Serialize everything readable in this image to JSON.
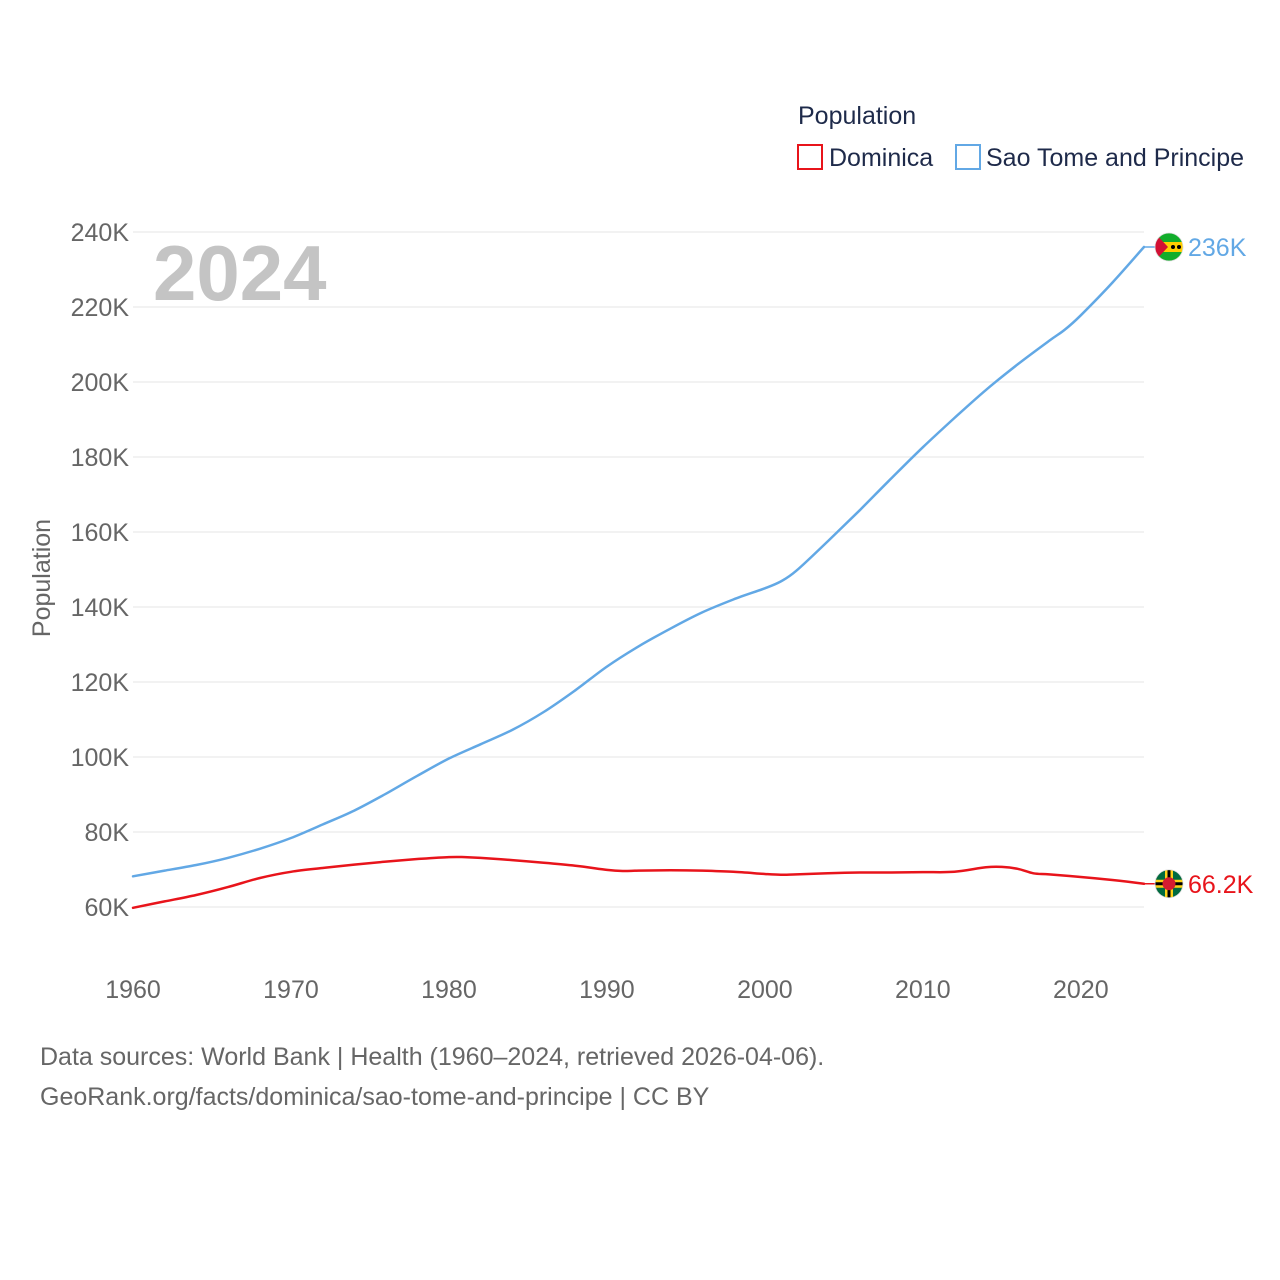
{
  "chart_data": {
    "type": "line",
    "title": "Population",
    "year_label": "2024",
    "ylabel": "Population",
    "xlabel": "",
    "xlim": [
      1960,
      2024
    ],
    "ylim": [
      60000,
      240000
    ],
    "x_ticks": [
      1960,
      1970,
      1980,
      1990,
      2000,
      2010,
      2020
    ],
    "x_tick_labels": [
      "1960",
      "1970",
      "1980",
      "1990",
      "2000",
      "2010",
      "2020"
    ],
    "y_ticks": [
      60000,
      80000,
      100000,
      120000,
      140000,
      160000,
      180000,
      200000,
      220000,
      240000
    ],
    "y_tick_labels": [
      "60K",
      "80K",
      "100K",
      "120K",
      "140K",
      "160K",
      "180K",
      "200K",
      "220K",
      "240K"
    ],
    "grid": true,
    "legend": "top-right",
    "series": [
      {
        "name": "Dominica",
        "color": "#e8141b",
        "end_label": "66.2K",
        "flag": "dominica-flag",
        "x": [
          1960,
          1962,
          1964,
          1966,
          1968,
          1970,
          1972,
          1974,
          1976,
          1978,
          1980,
          1981,
          1982,
          1984,
          1986,
          1988,
          1990,
          1991,
          1992,
          1994,
          1996,
          1998,
          2000,
          2001,
          2002,
          2004,
          2006,
          2008,
          2010,
          2012,
          2014,
          2015,
          2016,
          2017,
          2018,
          2020,
          2022,
          2024
        ],
        "values": [
          59800,
          61500,
          63200,
          65300,
          67700,
          69400,
          70400,
          71300,
          72100,
          72800,
          73300,
          73300,
          73100,
          72500,
          71800,
          71000,
          69900,
          69600,
          69700,
          69800,
          69700,
          69400,
          68800,
          68600,
          68700,
          69000,
          69200,
          69200,
          69300,
          69400,
          70600,
          70700,
          70200,
          69000,
          68700,
          68000,
          67200,
          66200
        ]
      },
      {
        "name": "Sao Tome and Principe",
        "color": "#62a8e5",
        "end_label": "236K",
        "flag": "sao-tome-and-principe-flag",
        "x": [
          1960,
          1962,
          1964,
          1966,
          1968,
          1970,
          1972,
          1974,
          1976,
          1978,
          1980,
          1982,
          1984,
          1986,
          1988,
          1990,
          1992,
          1994,
          1996,
          1998,
          2000,
          2001,
          2002,
          2004,
          2006,
          2008,
          2010,
          2012,
          2014,
          2016,
          2018,
          2019,
          2020,
          2022,
          2024
        ],
        "values": [
          68200,
          69700,
          71200,
          73100,
          75500,
          78400,
          82000,
          85700,
          90200,
          95000,
          99600,
          103400,
          107200,
          112000,
          117800,
          124100,
          129500,
          134200,
          138500,
          142000,
          145000,
          146800,
          149700,
          157600,
          165800,
          174300,
          182600,
          190400,
          197900,
          204700,
          211000,
          214000,
          217800,
          226500,
          236000
        ]
      }
    ]
  },
  "footer": {
    "line1": "Data sources: World Bank | Health (1960–2024, retrieved 2026-04-06).",
    "line2": "GeoRank.org/facts/dominica/sao-tome-and-principe | CC BY"
  }
}
